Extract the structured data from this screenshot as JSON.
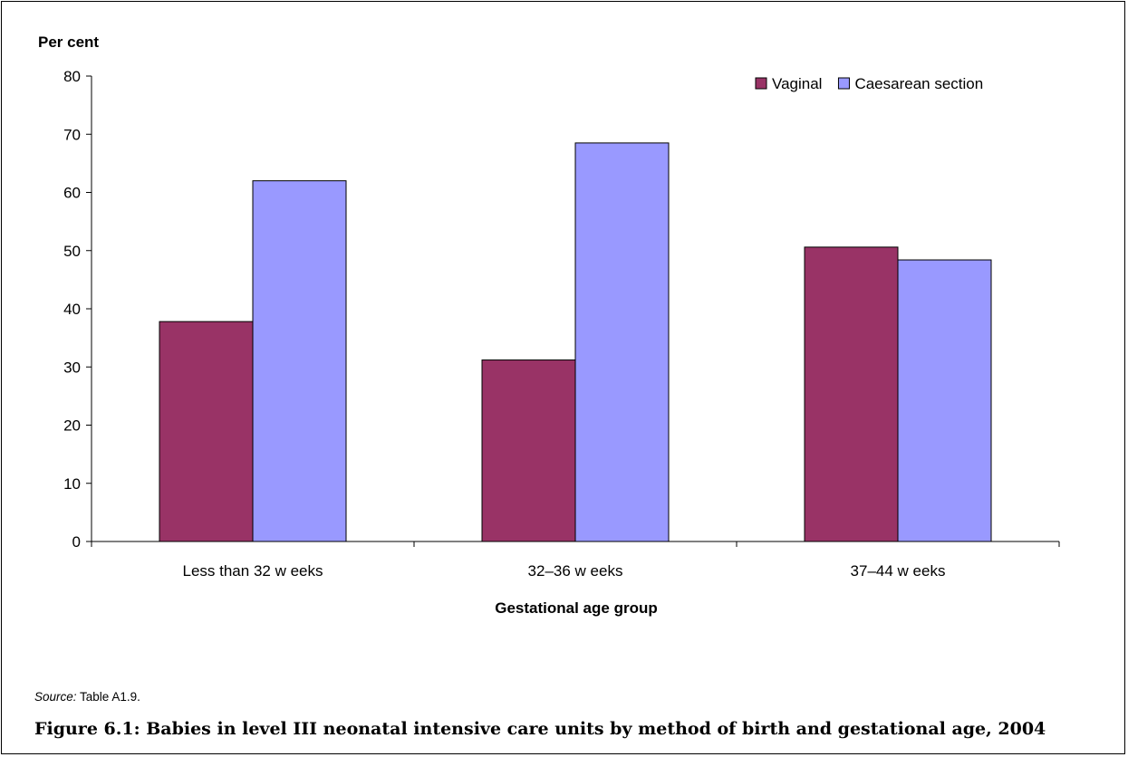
{
  "chart_data": {
    "type": "bar",
    "ylabel": "Per cent",
    "xlabel": "Gestational age group",
    "categories": [
      "Less than 32 w eeks",
      "32–36 w eeks",
      "37–44 w eeks"
    ],
    "series": [
      {
        "name": "Vaginal",
        "values": [
          37.8,
          31.2,
          50.6
        ],
        "color": "#993366"
      },
      {
        "name": "Caesarean section",
        "values": [
          62,
          68.5,
          48.4
        ],
        "color": "#9999ff"
      }
    ],
    "ylim": [
      0,
      80
    ],
    "yticks": [
      "0",
      "10",
      "20",
      "30",
      "40",
      "50",
      "60",
      "70",
      "80"
    ],
    "grid": false,
    "legend_position": "top-right"
  },
  "source": {
    "label": "Source:",
    "text": " Table A1.9."
  },
  "caption": "Figure 6.1: Babies in level III neonatal intensive care units by method of birth and gestational age, 2004"
}
